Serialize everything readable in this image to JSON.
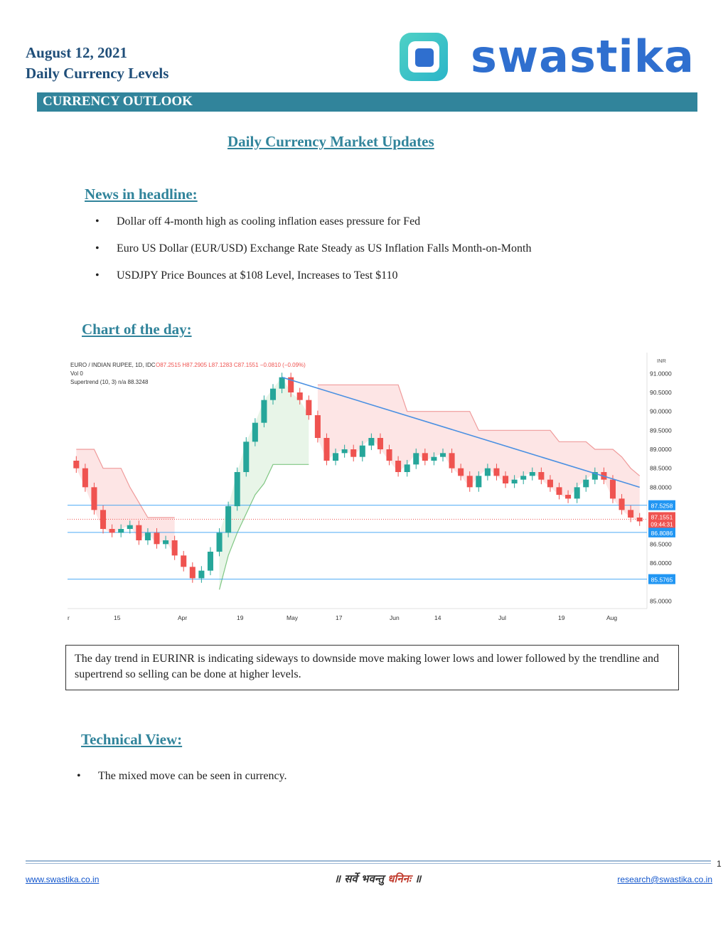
{
  "header": {
    "date": "August 12, 2021",
    "subtitle": "Daily Currency Levels",
    "brand": "swastika",
    "brand_color": "#2f6fcf",
    "logo_icon": "swastika-logo-icon"
  },
  "outlook_bar": {
    "label": "CURRENCY OUTLOOK",
    "color": "#31849b"
  },
  "page_title": "Daily Currency Market Updates",
  "news": {
    "heading": "News in headline:",
    "items": [
      "Dollar off 4-month high as cooling inflation eases pressure for Fed",
      "Euro US Dollar (EUR/USD) Exchange Rate Steady as US Inflation Falls Month-on-Month",
      "USDJPY Price Bounces at $108 Level, Increases to Test $110"
    ]
  },
  "chart_section": {
    "heading": "Chart of the day:"
  },
  "chart_data": {
    "type": "candlestick",
    "legend_line1_prefix": "EURO / INDIAN RUPEE, 1D, IDC",
    "ohlc_text": "O87.2515 H87.2905 L87.1283 C87.1551 −0.0810 (−0.09%)",
    "vol_text": "Vol 0",
    "supertrend_text": "Supertrend (10, 3) n/a 88.3248",
    "currency": "INR",
    "y_ticks": [
      "91.0000",
      "90.5000",
      "90.0000",
      "89.5000",
      "89.0000",
      "88.5000",
      "88.0000",
      "86.5000",
      "86.0000",
      "85.0000"
    ],
    "ylim": [
      84.8,
      91.4
    ],
    "x_ticks": [
      "r",
      "15",
      "Apr",
      "19",
      "May",
      "17",
      "Jun",
      "14",
      "Jul",
      "19",
      "Aug"
    ],
    "levels": [
      {
        "value": 87.5258,
        "label": "87.5258",
        "color": "#2196f3"
      },
      {
        "value": 86.8086,
        "label": "86.8086",
        "color": "#2196f3"
      },
      {
        "value": 85.5765,
        "label": "85.5765",
        "color": "#2196f3"
      }
    ],
    "last_price": {
      "value": 87.1551,
      "label": "87.1551",
      "timer": "09:44:31",
      "color": "#ef5350"
    },
    "closes": [
      88.5,
      88.0,
      87.4,
      86.9,
      86.8,
      86.9,
      87.0,
      86.6,
      86.8,
      86.5,
      86.6,
      86.2,
      85.9,
      85.6,
      85.8,
      86.3,
      86.8,
      87.5,
      88.4,
      89.2,
      89.7,
      90.3,
      90.6,
      90.9,
      90.5,
      90.3,
      89.9,
      89.3,
      88.7,
      88.9,
      89.0,
      88.8,
      89.1,
      89.3,
      89.0,
      88.7,
      88.4,
      88.6,
      88.9,
      88.7,
      88.8,
      88.9,
      88.5,
      88.3,
      88.0,
      88.3,
      88.5,
      88.3,
      88.1,
      88.2,
      88.3,
      88.4,
      88.2,
      88.0,
      87.8,
      87.7,
      88.0,
      88.2,
      88.4,
      88.2,
      87.7,
      87.4,
      87.2,
      87.1
    ],
    "supertrend_upper": [
      89.0,
      89.0,
      89.0,
      88.5,
      88.5,
      88.5,
      88.0,
      87.6,
      87.2,
      87.2,
      87.2,
      87.2,
      null,
      null,
      null,
      null,
      null,
      null,
      null,
      null,
      null,
      null,
      null,
      null,
      null,
      null,
      null,
      90.7,
      90.7,
      90.7,
      90.7,
      90.7,
      90.7,
      90.7,
      90.7,
      90.7,
      90.7,
      90.0,
      90.0,
      90.0,
      90.0,
      90.0,
      90.0,
      90.0,
      90.0,
      89.5,
      89.5,
      89.5,
      89.5,
      89.5,
      89.5,
      89.5,
      89.5,
      89.5,
      89.2,
      89.2,
      89.2,
      89.2,
      89.0,
      89.0,
      89.0,
      88.8,
      88.5,
      88.3
    ],
    "supertrend_lower": [
      null,
      null,
      null,
      null,
      null,
      null,
      null,
      null,
      null,
      null,
      null,
      null,
      null,
      null,
      null,
      null,
      85.3,
      86.2,
      86.8,
      87.3,
      87.8,
      88.1,
      88.6,
      88.6,
      88.6,
      88.6,
      88.6,
      null,
      null,
      null,
      null,
      null,
      null,
      null,
      null,
      null,
      null,
      null,
      null,
      null,
      null,
      null,
      null,
      null,
      null,
      null,
      null,
      null,
      null,
      null,
      null,
      null,
      null,
      null,
      null,
      null,
      null,
      null,
      null,
      null,
      null,
      null,
      null,
      null
    ],
    "trendline": [
      [
        23,
        90.9
      ],
      [
        63,
        88.0
      ]
    ]
  },
  "trend_note": "The day trend in EURINR is indicating sideways to downside move making lower lows and lower followed by the trendline and supertrend so selling can be done at higher levels.",
  "technical": {
    "heading": "Technical View:",
    "items": [
      "The mixed move can be seen in currency."
    ]
  },
  "footer": {
    "page_number": "1",
    "website": "www.swastika.co.in",
    "motto_part1": "॥ सर्वे भवन्तु",
    "motto_part2": "धनिनः",
    "motto_part3": "॥",
    "email": "research@swastika.co.in"
  }
}
